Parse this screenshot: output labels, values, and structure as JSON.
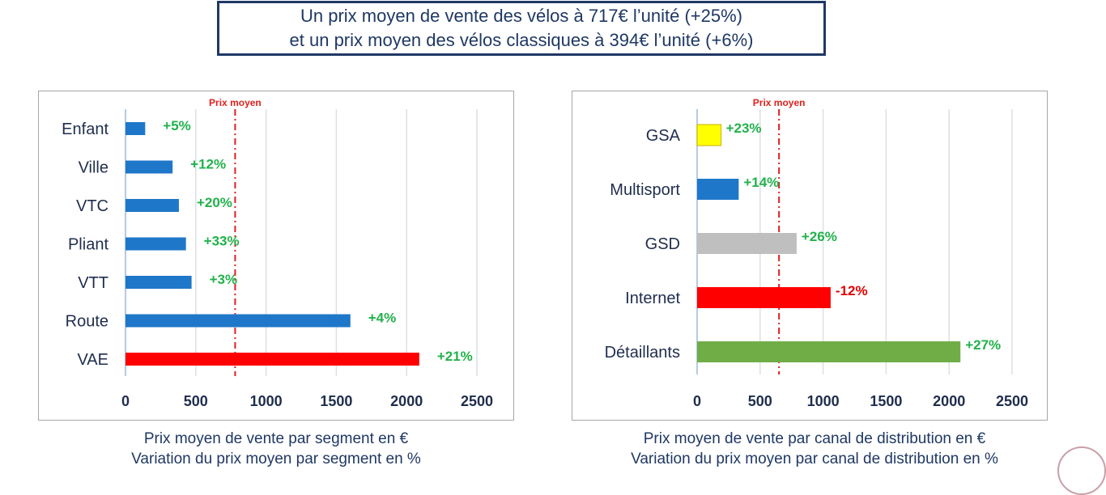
{
  "headline": {
    "line1": "Un prix moyen de vente des vélos à 717€ l’unité (+25%)",
    "line2": "et un prix moyen des vélos classiques à 394€ l’unité (+6%)"
  },
  "colors": {
    "blue": "#1f77c9",
    "red": "#ff0000",
    "yellow": "#ffff00",
    "gray": "#bfbfbf",
    "green_bar": "#70ad47",
    "green_text": "#21b24b",
    "red_text": "#e30000",
    "ref_line": "#e02020",
    "grid": "#dcdfe6"
  },
  "chart_data": [
    {
      "type": "bar",
      "orientation": "horizontal",
      "title": "",
      "categories": [
        "Enfant",
        "Ville",
        "VTC",
        "Pliant",
        "VTT",
        "Route",
        "VAE"
      ],
      "values": [
        140,
        335,
        380,
        430,
        470,
        1600,
        2090
      ],
      "bar_colors": [
        "blue",
        "blue",
        "blue",
        "blue",
        "blue",
        "blue",
        "red"
      ],
      "data_labels": [
        "+5%",
        "+12%",
        "+20%",
        "+33%",
        "+3%",
        "+4%",
        "+21%"
      ],
      "label_colors": [
        "green_text",
        "green_text",
        "green_text",
        "green_text",
        "green_text",
        "green_text",
        "green_text"
      ],
      "reference_line": {
        "value": 780,
        "label": "Prix moyen"
      },
      "xlim": [
        0,
        2500
      ],
      "xticks": [
        "0",
        "500",
        "1000",
        "1500",
        "2000",
        "2500"
      ],
      "grid": true,
      "caption": [
        "Prix moyen de vente par segment en €",
        "Variation du prix moyen par segment en %"
      ]
    },
    {
      "type": "bar",
      "orientation": "horizontal",
      "title": "",
      "categories": [
        "GSA",
        "Multisport",
        "GSD",
        "Internet",
        "Détaillants"
      ],
      "values": [
        190,
        330,
        790,
        1060,
        2090
      ],
      "bar_colors": [
        "yellow",
        "blue",
        "gray",
        "red",
        "green_bar"
      ],
      "data_labels": [
        "+23%",
        "+14%",
        "+26%",
        "-12%",
        "+27%"
      ],
      "label_colors": [
        "green_text",
        "green_text",
        "green_text",
        "red_text",
        "green_text"
      ],
      "reference_line": {
        "value": 650,
        "label": "Prix moyen"
      },
      "xlim": [
        0,
        2500
      ],
      "xticks": [
        "0",
        "500",
        "1000",
        "1500",
        "2000",
        "2500"
      ],
      "grid": true,
      "caption": [
        "Prix moyen de vente par canal de distribution en €",
        "Variation du prix moyen par canal de distribution en %"
      ]
    }
  ]
}
